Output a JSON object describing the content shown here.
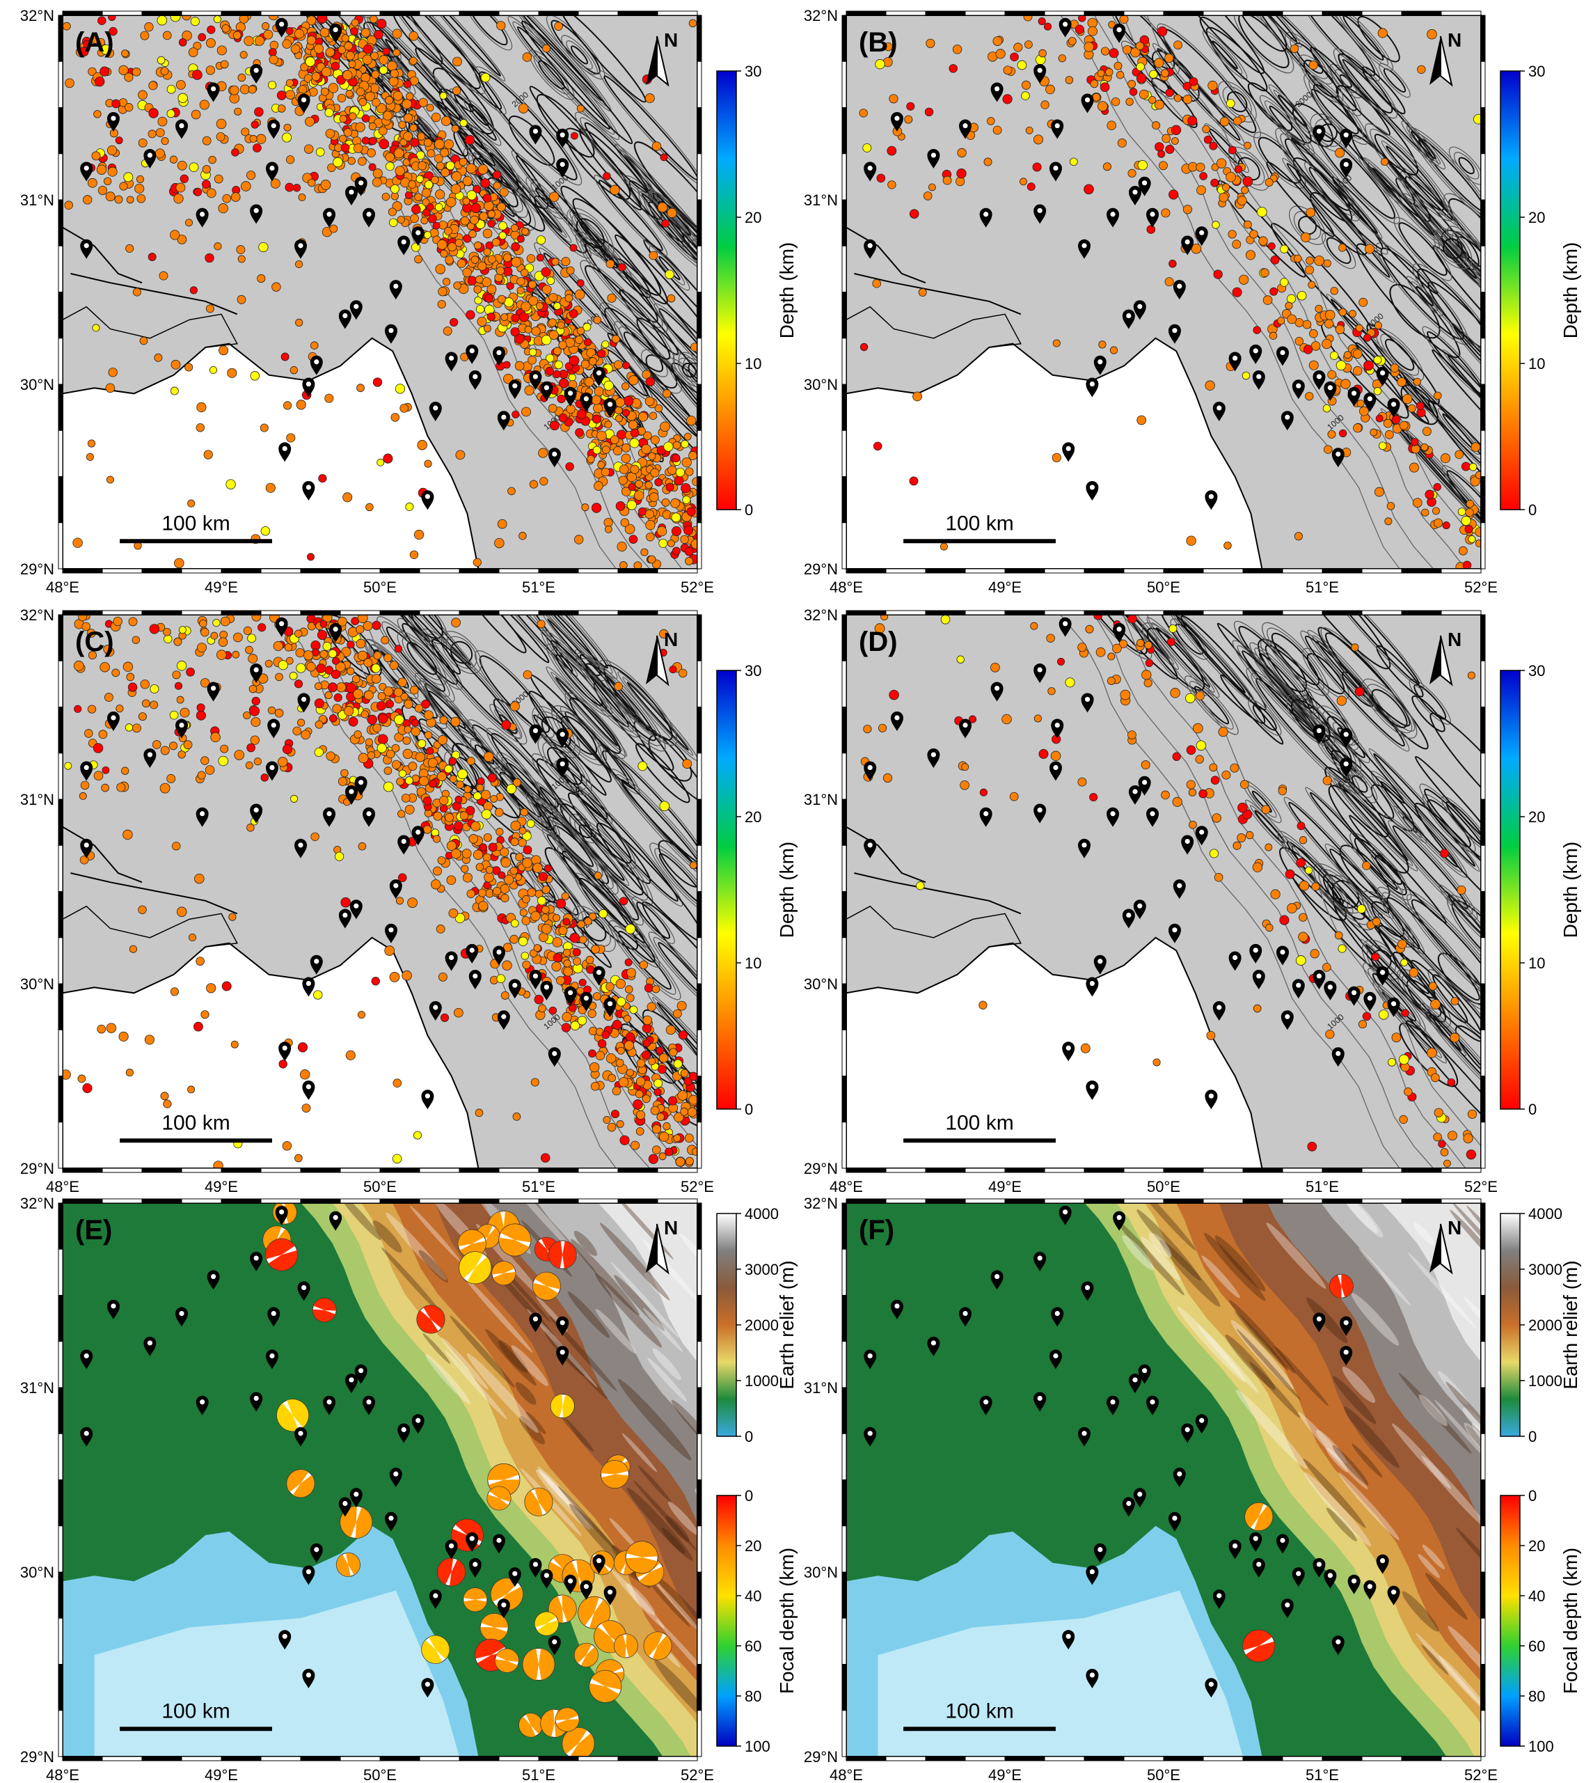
{
  "figure": {
    "panels": [
      {
        "id": "A",
        "label": "(A)",
        "type": "seismicity",
        "density": 1.0
      },
      {
        "id": "B",
        "label": "(B)",
        "type": "seismicity",
        "density": 0.28
      },
      {
        "id": "C",
        "label": "(C)",
        "type": "seismicity",
        "density": 0.7
      },
      {
        "id": "D",
        "label": "(D)",
        "type": "seismicity",
        "density": 0.12
      },
      {
        "id": "E",
        "label": "(E)",
        "type": "relief"
      },
      {
        "id": "F",
        "label": "(F)",
        "type": "relief"
      }
    ],
    "x_ticks": [
      "48°E",
      "49°E",
      "50°E",
      "51°E",
      "52°E"
    ],
    "y_ticks": [
      "29°N",
      "30°N",
      "31°N",
      "32°N"
    ],
    "extent": {
      "lon": [
        48,
        52
      ],
      "lat": [
        29,
        32
      ]
    },
    "scale_bar": {
      "label": "100 km"
    },
    "north_arrow": {
      "label": "N"
    },
    "contour_labels": [
      "1000",
      "2000"
    ],
    "depth_colorbar": {
      "title": "Depth (km)",
      "ticks": [
        "0",
        "10",
        "20",
        "30"
      ],
      "colors": [
        "#ff0000",
        "#ff8000",
        "#ffff00",
        "#00cc44",
        "#00aaff",
        "#0000cc"
      ]
    },
    "relief_colorbar": {
      "title": "Earth relief (m)",
      "ticks": [
        "0",
        "1000",
        "2000",
        "3000",
        "4000"
      ],
      "colors": [
        "#3aa9e0",
        "#1e8a3c",
        "#e8d86a",
        "#c9702a",
        "#8a5a3a",
        "#808080",
        "#ffffff"
      ]
    },
    "focal_colorbar": {
      "title": "Focal depth (km)",
      "ticks": [
        "0",
        "20",
        "40",
        "60",
        "80",
        "100"
      ],
      "colors": [
        "#ff0000",
        "#ff8c00",
        "#ffe000",
        "#30d030",
        "#00a0ff",
        "#0000c0"
      ]
    },
    "stations": [
      [
        49.38,
        31.88
      ],
      [
        49.72,
        31.85
      ],
      [
        49.22,
        31.63
      ],
      [
        48.95,
        31.53
      ],
      [
        49.52,
        31.47
      ],
      [
        48.32,
        31.37
      ],
      [
        48.75,
        31.33
      ],
      [
        49.33,
        31.33
      ],
      [
        48.55,
        31.17
      ],
      [
        48.15,
        31.1
      ],
      [
        49.32,
        31.1
      ],
      [
        48.88,
        30.85
      ],
      [
        49.22,
        30.87
      ],
      [
        49.68,
        30.85
      ],
      [
        49.82,
        30.97
      ],
      [
        49.88,
        31.02
      ],
      [
        49.93,
        30.85
      ],
      [
        49.5,
        30.68
      ],
      [
        48.15,
        30.68
      ],
      [
        49.78,
        30.3
      ],
      [
        49.85,
        30.35
      ],
      [
        50.1,
        30.46
      ],
      [
        50.15,
        30.7
      ],
      [
        50.24,
        30.75
      ],
      [
        50.07,
        30.22
      ],
      [
        49.6,
        30.05
      ],
      [
        49.55,
        29.93
      ],
      [
        50.35,
        29.8
      ],
      [
        50.45,
        30.07
      ],
      [
        50.58,
        30.11
      ],
      [
        50.75,
        30.1
      ],
      [
        50.6,
        29.97
      ],
      [
        50.85,
        29.92
      ],
      [
        51.05,
        29.91
      ],
      [
        51.2,
        29.88
      ],
      [
        51.3,
        29.85
      ],
      [
        51.45,
        29.82
      ],
      [
        50.78,
        29.75
      ],
      [
        51.1,
        29.55
      ],
      [
        49.4,
        29.58
      ],
      [
        49.55,
        29.37
      ],
      [
        50.3,
        29.32
      ],
      [
        50.98,
        31.3
      ],
      [
        51.15,
        31.28
      ],
      [
        51.15,
        31.12
      ],
      [
        51.38,
        29.99
      ],
      [
        50.98,
        29.97
      ]
    ],
    "focal_mechanisms_E": [
      [
        49.4,
        31.95,
        0.45
      ],
      [
        49.35,
        31.8,
        0.3
      ],
      [
        49.38,
        31.72,
        0.2
      ],
      [
        49.65,
        31.42,
        0.2
      ],
      [
        50.32,
        31.37,
        0.15
      ],
      [
        50.78,
        31.87,
        0.4
      ],
      [
        50.68,
        31.82,
        0.35
      ],
      [
        50.58,
        31.78,
        0.45
      ],
      [
        50.85,
        31.8,
        0.25
      ],
      [
        51.05,
        31.75,
        0.2
      ],
      [
        51.15,
        31.72,
        0.2
      ],
      [
        50.6,
        31.65,
        0.55
      ],
      [
        50.78,
        31.62,
        0.4
      ],
      [
        51.05,
        31.55,
        0.4
      ],
      [
        49.45,
        30.85,
        0.6
      ],
      [
        51.15,
        30.9,
        0.5
      ],
      [
        49.5,
        30.48,
        0.25
      ],
      [
        50.78,
        30.5,
        0.45
      ],
      [
        50.75,
        30.4,
        0.4
      ],
      [
        51.0,
        30.38,
        0.3
      ],
      [
        49.85,
        30.27,
        0.3
      ],
      [
        51.5,
        30.57,
        0.35
      ],
      [
        51.48,
        30.53,
        0.3
      ],
      [
        50.55,
        30.2,
        0.2
      ],
      [
        49.8,
        30.04,
        0.3
      ],
      [
        50.45,
        30.0,
        0.2
      ],
      [
        50.8,
        29.88,
        0.25
      ],
      [
        50.6,
        29.85,
        0.3
      ],
      [
        51.15,
        30.02,
        0.25
      ],
      [
        51.25,
        29.98,
        0.3
      ],
      [
        51.55,
        30.05,
        0.35
      ],
      [
        51.7,
        30.0,
        0.3
      ],
      [
        51.65,
        30.08,
        0.3
      ],
      [
        51.4,
        30.05,
        0.35
      ],
      [
        51.15,
        29.8,
        0.35
      ],
      [
        51.35,
        29.78,
        0.45
      ],
      [
        51.05,
        29.72,
        0.5
      ],
      [
        50.72,
        29.7,
        0.25
      ],
      [
        51.45,
        29.65,
        0.3
      ],
      [
        51.55,
        29.6,
        0.25
      ],
      [
        51.75,
        29.6,
        0.3
      ],
      [
        50.7,
        29.55,
        0.2
      ],
      [
        50.8,
        29.52,
        0.25
      ],
      [
        50.35,
        29.58,
        0.55
      ],
      [
        51.0,
        29.5,
        0.3
      ],
      [
        51.3,
        29.55,
        0.45
      ],
      [
        51.45,
        29.45,
        0.4
      ],
      [
        51.42,
        29.38,
        0.45
      ],
      [
        50.95,
        29.17,
        0.45
      ],
      [
        51.1,
        29.18,
        0.3
      ],
      [
        51.25,
        29.07,
        0.4
      ],
      [
        51.18,
        29.2,
        0.35
      ]
    ],
    "focal_mechanisms_F": [
      [
        51.12,
        31.55,
        0.15
      ],
      [
        50.6,
        30.3,
        0.3
      ],
      [
        50.6,
        29.6,
        0.2
      ]
    ]
  }
}
